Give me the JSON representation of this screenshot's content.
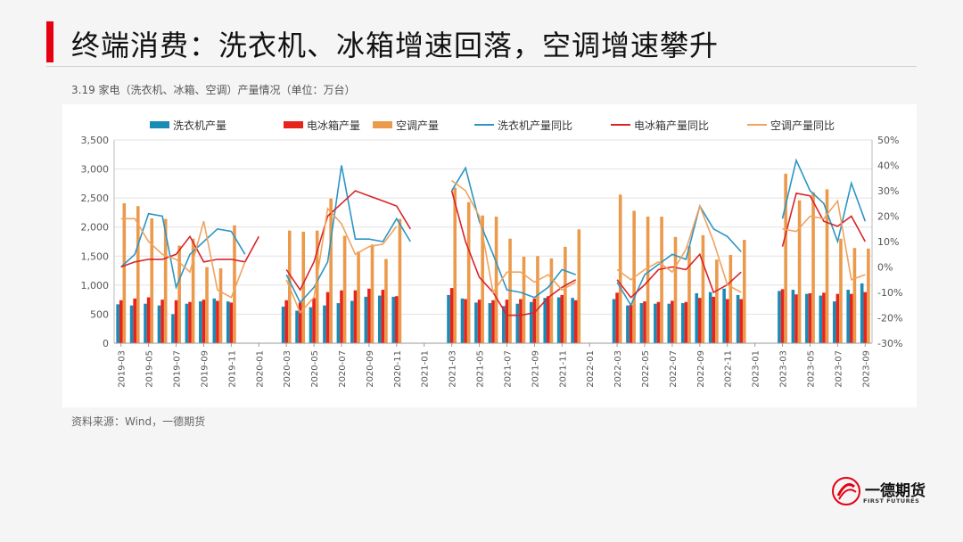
{
  "header": {
    "title": "终端消费：洗衣机、冰箱增速回落，空调增速攀升",
    "subtitle": "3.19 家电（洗衣机、冰箱、空调）产量情况（单位：万台）"
  },
  "footer": {
    "source": "资料来源：Wind，一德期货",
    "logo_text": "一德期货",
    "logo_sub": "FIRST FUTURES"
  },
  "colors": {
    "washer_bar": "#1a8bb5",
    "fridge_bar": "#e8231c",
    "ac_bar": "#eb9a4c",
    "washer_line": "#2b96c4",
    "fridge_line": "#d8252a",
    "ac_line": "#f0a35e",
    "accent": "#e60012"
  },
  "chart_data": {
    "type": "bar",
    "title": "",
    "ylim_left": [
      0,
      3500
    ],
    "yticks_left": [
      "0",
      "500",
      "1,000",
      "1,500",
      "2,000",
      "2,500",
      "3,000",
      "3,500"
    ],
    "ylim_right": [
      -30,
      50
    ],
    "yticks_right": [
      "-30%",
      "-20%",
      "-10%",
      "0%",
      "10%",
      "20%",
      "30%",
      "40%",
      "50%"
    ],
    "categories": [
      "2019-03",
      "2019-04",
      "2019-05",
      "2019-06",
      "2019-07",
      "2019-08",
      "2019-09",
      "2019-10",
      "2019-11",
      "2019-12",
      "2020-01",
      "2020-02",
      "2020-03",
      "2020-04",
      "2020-05",
      "2020-06",
      "2020-07",
      "2020-08",
      "2020-09",
      "2020-10",
      "2020-11",
      "2020-12",
      "2021-01",
      "2021-02",
      "2021-03",
      "2021-04",
      "2021-05",
      "2021-06",
      "2021-07",
      "2021-08",
      "2021-09",
      "2021-10",
      "2021-11",
      "2021-12",
      "2022-01",
      "2022-02",
      "2022-03",
      "2022-04",
      "2022-05",
      "2022-06",
      "2022-07",
      "2022-08",
      "2022-09",
      "2022-10",
      "2022-11",
      "2022-12",
      "2023-01",
      "2023-02",
      "2023-03",
      "2023-04",
      "2023-05",
      "2023-06",
      "2023-07",
      "2023-08",
      "2023-09"
    ],
    "tick_labels": [
      "2019-03",
      "2019-05",
      "2019-07",
      "2019-09",
      "2019-11",
      "2020-01",
      "2020-03",
      "2020-05",
      "2020-07",
      "2020-09",
      "2020-11",
      "2021-01",
      "2021-03",
      "2021-05",
      "2021-07",
      "2021-09",
      "2021-11",
      "2022-01",
      "2022-03",
      "2022-05",
      "2022-07",
      "2022-09",
      "2022-11",
      "2023-01",
      "2023-03",
      "2023-05",
      "2023-07",
      "2023-09"
    ],
    "bar_series": [
      {
        "name": "洗衣机产量",
        "color_key": "washer_bar",
        "values": [
          670,
          650,
          680,
          650,
          500,
          680,
          720,
          770,
          720,
          null,
          null,
          null,
          630,
          560,
          620,
          650,
          690,
          730,
          800,
          820,
          800,
          null,
          null,
          null,
          830,
          770,
          700,
          690,
          640,
          680,
          710,
          780,
          790,
          780,
          null,
          null,
          760,
          650,
          690,
          680,
          680,
          690,
          860,
          880,
          940,
          830,
          null,
          null,
          900,
          920,
          850,
          820,
          720,
          920,
          1030
        ]
      },
      {
        "name": "电冰箱产量",
        "color_key": "fridge_bar",
        "values": [
          740,
          770,
          790,
          750,
          740,
          710,
          750,
          730,
          700,
          null,
          null,
          null,
          740,
          700,
          780,
          880,
          910,
          910,
          940,
          920,
          810,
          null,
          null,
          null,
          950,
          760,
          750,
          740,
          750,
          760,
          770,
          810,
          830,
          740,
          null,
          null,
          870,
          660,
          720,
          710,
          730,
          710,
          780,
          800,
          760,
          760,
          null,
          null,
          930,
          840,
          860,
          870,
          850,
          850,
          880
        ]
      },
      {
        "name": "空调产量",
        "color_key": "ac_bar",
        "values": [
          2410,
          2360,
          2150,
          2140,
          1680,
          1800,
          1310,
          1290,
          2030,
          null,
          null,
          null,
          1940,
          1920,
          1940,
          2490,
          1850,
          1580,
          1700,
          1450,
          2140,
          null,
          null,
          null,
          2680,
          2430,
          2200,
          2180,
          1800,
          1490,
          1500,
          1460,
          1660,
          1960,
          null,
          null,
          2560,
          2280,
          2180,
          2180,
          1830,
          1670,
          1860,
          1440,
          1520,
          1780,
          null,
          null,
          2920,
          2460,
          2600,
          2650,
          1800,
          1640,
          1630
        ]
      }
    ],
    "line_series": [
      {
        "name": "洗衣机产量同比",
        "color_key": "washer_line",
        "values": [
          0,
          5,
          21,
          20,
          -8,
          5,
          10,
          15,
          14,
          5,
          null,
          null,
          -3,
          -14,
          -8,
          2,
          40,
          11,
          11,
          10,
          19,
          10,
          null,
          null,
          30,
          39,
          18,
          5,
          -9,
          -10,
          -12,
          -8,
          -1,
          -3,
          null,
          null,
          -6,
          -15,
          -3,
          1,
          5,
          3,
          24,
          15,
          12,
          6,
          null,
          null,
          19,
          42,
          30,
          25,
          10,
          33,
          18
        ]
      },
      {
        "name": "电冰箱产量同比",
        "color_key": "fridge_line",
        "values": [
          0,
          2,
          3,
          3,
          5,
          12,
          2,
          3,
          3,
          2,
          12,
          null,
          -1,
          -9,
          2,
          20,
          25,
          30,
          28,
          26,
          24,
          15,
          null,
          null,
          30,
          10,
          -4,
          -10,
          -19,
          -19,
          -18,
          -12,
          -8,
          -5,
          null,
          null,
          -5,
          -12,
          -7,
          -1,
          0,
          -1,
          5,
          -10,
          -7,
          -2,
          null,
          null,
          8,
          29,
          28,
          18,
          16,
          20,
          10
        ]
      },
      {
        "name": "空调产量同比",
        "color_key": "ac_line",
        "values": [
          19,
          19,
          10,
          5,
          3,
          -2,
          18,
          -9,
          -12,
          2,
          null,
          null,
          -5,
          -18,
          -12,
          23,
          17,
          5,
          8,
          9,
          16,
          null,
          null,
          null,
          34,
          30,
          20,
          -10,
          -2,
          -2,
          -6,
          -3,
          -9,
          -6,
          null,
          null,
          -1,
          -5,
          -1,
          2,
          -2,
          7,
          24,
          10,
          -7,
          -10,
          null,
          null,
          15,
          14,
          20,
          19,
          26,
          -5,
          -3
        ]
      }
    ],
    "legend_position": "top"
  }
}
